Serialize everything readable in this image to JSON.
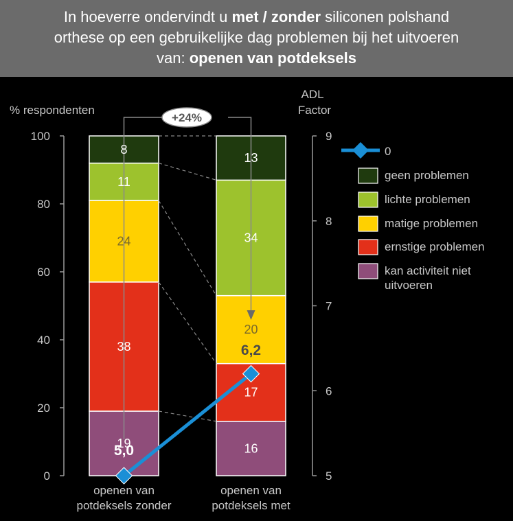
{
  "title": {
    "line1_pre": "In hoeverre ondervindt u ",
    "line1_bold": "met / zonder",
    "line1_post": " siliconen polshand",
    "line2": "orthese op een gebruikelijke dag problemen bij het uitvoeren",
    "line3_pre": "van: ",
    "line3_bold": "openen van potdeksels"
  },
  "chart_data": {
    "type": "bar",
    "stacked": true,
    "title": "In hoeverre ondervindt u met / zonder siliconen polshand orthese op een gebruikelijke dag problemen bij het uitvoeren van: openen van potdeksels",
    "ylabel": "% respondenten",
    "y2label_line1": "ADL",
    "y2label_line2": "Factor",
    "ylim": [
      0,
      100
    ],
    "yticks": [
      "0",
      "20",
      "40",
      "60",
      "80",
      "100"
    ],
    "y2lim": [
      5,
      9
    ],
    "y2ticks": [
      "5",
      "6",
      "7",
      "8",
      "9"
    ],
    "categories": [
      [
        "openen van",
        "potdeksels zonder"
      ],
      [
        "openen van",
        "potdeksels met"
      ]
    ],
    "series": [
      {
        "name": "kan activiteit niet uitvoeren",
        "legend_lines": [
          "kan activiteit niet",
          "uitvoeren"
        ],
        "color": "#8f4d7a",
        "values": [
          19,
          16
        ],
        "labels": [
          "19",
          "16"
        ]
      },
      {
        "name": "ernstige problemen",
        "legend_lines": [
          "ernstige problemen"
        ],
        "color": "#e3301a",
        "values": [
          38,
          17
        ],
        "labels": [
          "38",
          "17"
        ]
      },
      {
        "name": "matige problemen",
        "legend_lines": [
          "matige problemen"
        ],
        "color": "#ffd000",
        "values": [
          24,
          20
        ],
        "labels": [
          "24",
          "20"
        ]
      },
      {
        "name": "lichte problemen",
        "legend_lines": [
          "lichte problemen"
        ],
        "color": "#9dc22d",
        "values": [
          11,
          34
        ],
        "labels": [
          "11",
          "34"
        ]
      },
      {
        "name": "geen problemen",
        "legend_lines": [
          "geen problemen"
        ],
        "color": "#1f3a0e",
        "values": [
          8,
          13
        ],
        "labels": [
          "8",
          "13"
        ]
      }
    ],
    "line_series": {
      "name": "0",
      "axis": "right",
      "color": "#1a8fd6",
      "values": [
        5.0,
        6.2
      ],
      "labels": [
        "5,0",
        "6,2"
      ]
    },
    "annotation": "+24%",
    "grid": false,
    "legend_position": "right"
  }
}
